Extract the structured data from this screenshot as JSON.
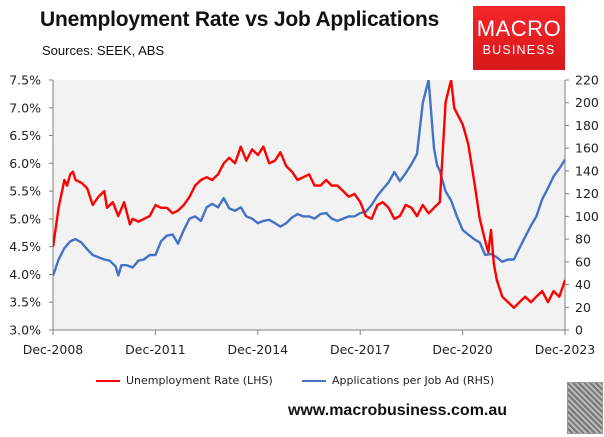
{
  "header": {
    "title": "Unemployment Rate vs Job Applications",
    "subtitle": "Sources: SEEK, ABS"
  },
  "logo": {
    "line1": "MACRO",
    "line2": "BUSINESS"
  },
  "footer": {
    "website": "www.macrobusiness.com.au",
    "wolf_icon": "wolf-logo-icon"
  },
  "colors": {
    "unemployment": "#ff0000",
    "applications": "#4472c4",
    "plot_bg": "#f2f2f2",
    "axis": "#808080",
    "logo_red": "#e8201f"
  },
  "chart_data": {
    "type": "line",
    "title": "Unemployment Rate vs Job Applications",
    "subtitle": "Sources: SEEK, ABS",
    "xlabel": "",
    "x_ticks": [
      "Dec-2008",
      "Dec-2011",
      "Dec-2014",
      "Dec-2017",
      "Dec-2020",
      "Dec-2023"
    ],
    "x_range": [
      2008.917,
      2023.917
    ],
    "y_left": {
      "label": "Unemployment Rate",
      "ticks": [
        "3.0%",
        "3.5%",
        "4.0%",
        "4.5%",
        "5.0%",
        "5.5%",
        "6.0%",
        "6.5%",
        "7.0%",
        "7.5%"
      ],
      "range": [
        3.0,
        7.5
      ]
    },
    "y_right": {
      "label": "Applications per Job Ad",
      "ticks": [
        "0",
        "20",
        "40",
        "60",
        "80",
        "100",
        "120",
        "140",
        "160",
        "180",
        "200",
        "220"
      ],
      "range": [
        0,
        220
      ]
    },
    "grid": false,
    "legend_position": "bottom",
    "series": [
      {
        "name": "Unemployment Rate (LHS)",
        "axis": "left",
        "color": "#ff0000",
        "x": [
          2008.92,
          2009.08,
          2009.25,
          2009.33,
          2009.42,
          2009.5,
          2009.58,
          2009.75,
          2009.92,
          2010.08,
          2010.25,
          2010.42,
          2010.5,
          2010.67,
          2010.83,
          2011.0,
          2011.17,
          2011.25,
          2011.42,
          2011.58,
          2011.75,
          2011.92,
          2012.08,
          2012.25,
          2012.42,
          2012.58,
          2012.75,
          2012.92,
          2013.08,
          2013.25,
          2013.42,
          2013.58,
          2013.75,
          2013.92,
          2014.08,
          2014.25,
          2014.42,
          2014.58,
          2014.75,
          2014.92,
          2015.08,
          2015.25,
          2015.42,
          2015.58,
          2015.75,
          2015.92,
          2016.08,
          2016.25,
          2016.42,
          2016.58,
          2016.75,
          2016.92,
          2017.08,
          2017.25,
          2017.42,
          2017.58,
          2017.75,
          2017.92,
          2018.08,
          2018.25,
          2018.42,
          2018.58,
          2018.75,
          2018.92,
          2019.08,
          2019.25,
          2019.42,
          2019.58,
          2019.75,
          2019.92,
          2020.08,
          2020.25,
          2020.42,
          2020.58,
          2020.67,
          2020.75,
          2020.92,
          2021.08,
          2021.25,
          2021.42,
          2021.58,
          2021.67,
          2021.75,
          2021.83,
          2021.92,
          2022.08,
          2022.25,
          2022.42,
          2022.58,
          2022.75,
          2022.92,
          2023.08,
          2023.25,
          2023.42,
          2023.58,
          2023.75,
          2023.92
        ],
        "values": [
          4.5,
          5.2,
          5.7,
          5.6,
          5.8,
          5.85,
          5.7,
          5.65,
          5.55,
          5.25,
          5.4,
          5.5,
          5.2,
          5.3,
          5.05,
          5.3,
          4.9,
          5.0,
          4.95,
          5.0,
          5.05,
          5.25,
          5.2,
          5.2,
          5.1,
          5.15,
          5.25,
          5.4,
          5.6,
          5.7,
          5.75,
          5.7,
          5.8,
          6.0,
          6.1,
          6.0,
          6.3,
          6.05,
          6.25,
          6.15,
          6.3,
          6.0,
          6.05,
          6.2,
          5.95,
          5.85,
          5.7,
          5.75,
          5.8,
          5.6,
          5.6,
          5.7,
          5.6,
          5.6,
          5.5,
          5.4,
          5.45,
          5.3,
          5.05,
          5.0,
          5.25,
          5.3,
          5.2,
          5.0,
          5.05,
          5.25,
          5.2,
          5.05,
          5.25,
          5.1,
          5.2,
          5.3,
          7.1,
          7.5,
          7.0,
          6.9,
          6.7,
          6.35,
          5.7,
          5.0,
          4.6,
          4.4,
          4.8,
          4.2,
          3.9,
          3.6,
          3.5,
          3.4,
          3.5,
          3.6,
          3.5,
          3.6,
          3.7,
          3.5,
          3.7,
          3.6,
          3.9
        ]
      },
      {
        "name": "Applications per Job Ad (RHS)",
        "axis": "right",
        "color": "#4472c4",
        "x": [
          2008.92,
          2009.08,
          2009.25,
          2009.42,
          2009.58,
          2009.75,
          2009.92,
          2010.08,
          2010.25,
          2010.42,
          2010.58,
          2010.75,
          2010.83,
          2010.92,
          2011.08,
          2011.25,
          2011.42,
          2011.58,
          2011.75,
          2011.92,
          2012.08,
          2012.25,
          2012.42,
          2012.58,
          2012.75,
          2012.92,
          2013.08,
          2013.25,
          2013.42,
          2013.58,
          2013.75,
          2013.92,
          2014.08,
          2014.25,
          2014.42,
          2014.58,
          2014.75,
          2014.92,
          2015.08,
          2015.25,
          2015.42,
          2015.58,
          2015.75,
          2015.92,
          2016.08,
          2016.25,
          2016.42,
          2016.58,
          2016.75,
          2016.92,
          2017.08,
          2017.25,
          2017.42,
          2017.58,
          2017.75,
          2017.92,
          2018.08,
          2018.25,
          2018.42,
          2018.58,
          2018.75,
          2018.92,
          2019.08,
          2019.25,
          2019.42,
          2019.58,
          2019.75,
          2019.92,
          2020.08,
          2020.17,
          2020.25,
          2020.42,
          2020.58,
          2020.75,
          2020.92,
          2021.08,
          2021.25,
          2021.42,
          2021.58,
          2021.75,
          2021.92,
          2022.08,
          2022.25,
          2022.42,
          2022.58,
          2022.75,
          2022.92,
          2023.08,
          2023.25,
          2023.42,
          2023.58,
          2023.75,
          2023.92
        ],
        "values": [
          48,
          62,
          72,
          78,
          80,
          77,
          71,
          66,
          64,
          62,
          61,
          56,
          48,
          57,
          57,
          55,
          61,
          62,
          66,
          66,
          78,
          83,
          84,
          76,
          88,
          98,
          100,
          96,
          108,
          111,
          108,
          116,
          107,
          105,
          108,
          100,
          98,
          94,
          96,
          97,
          94,
          91,
          94,
          99,
          102,
          100,
          100,
          98,
          102,
          103,
          98,
          96,
          98,
          100,
          100,
          103,
          104,
          110,
          118,
          124,
          130,
          139,
          131,
          138,
          146,
          155,
          200,
          220,
          160,
          145,
          140,
          122,
          114,
          100,
          88,
          84,
          80,
          77,
          66,
          67,
          64,
          60,
          62,
          62,
          72,
          82,
          92,
          100,
          115,
          125,
          135,
          142,
          150
        ]
      }
    ]
  },
  "legend": {
    "items": [
      {
        "label": "Unemployment Rate (LHS)",
        "color": "#ff0000"
      },
      {
        "label": "Applications per Job Ad (RHS)",
        "color": "#4472c4"
      }
    ]
  }
}
